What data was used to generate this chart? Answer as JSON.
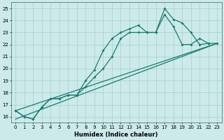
{
  "xlabel": "Humidex (Indice chaleur)",
  "bg_color": "#cceaea",
  "grid_color": "#aacccc",
  "line_color": "#1a7a6e",
  "xlim": [
    -0.5,
    23.5
  ],
  "ylim": [
    15.5,
    25.5
  ],
  "yticks": [
    16,
    17,
    18,
    19,
    20,
    21,
    22,
    23,
    24,
    25
  ],
  "xticks": [
    0,
    1,
    2,
    3,
    4,
    5,
    6,
    7,
    8,
    9,
    10,
    11,
    12,
    13,
    14,
    15,
    16,
    17,
    18,
    19,
    20,
    21,
    22,
    23
  ],
  "series1_x": [
    0,
    1,
    2,
    3,
    4,
    5,
    6,
    7,
    8,
    9,
    10,
    11,
    12,
    13,
    14,
    15,
    16,
    17,
    18,
    19,
    20,
    21,
    22,
    23
  ],
  "series1_y": [
    16.5,
    16.0,
    15.8,
    16.8,
    17.5,
    17.5,
    17.8,
    17.8,
    19.0,
    19.9,
    21.5,
    22.5,
    23.0,
    23.3,
    23.6,
    23.0,
    23.0,
    25.0,
    24.1,
    23.8,
    23.0,
    22.0,
    22.1,
    22.1
  ],
  "series2_x": [
    0,
    1,
    2,
    3,
    4,
    5,
    6,
    7,
    8,
    9,
    10,
    11,
    12,
    13,
    14,
    15,
    16,
    17,
    18,
    19,
    20,
    21,
    22
  ],
  "series2_y": [
    16.5,
    16.0,
    15.8,
    16.8,
    17.5,
    17.5,
    17.8,
    17.8,
    18.5,
    19.3,
    20.0,
    21.0,
    22.5,
    23.0,
    23.0,
    23.0,
    23.0,
    24.5,
    23.5,
    22.0,
    22.0,
    22.5,
    22.1
  ],
  "line3_x": [
    0,
    23
  ],
  "line3_y": [
    16.5,
    22.1
  ],
  "line4_x": [
    0,
    23
  ],
  "line4_y": [
    15.8,
    22.1
  ]
}
